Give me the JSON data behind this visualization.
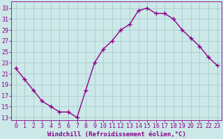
{
  "x": [
    0,
    1,
    2,
    3,
    4,
    5,
    6,
    7,
    8,
    9,
    10,
    11,
    12,
    13,
    14,
    15,
    16,
    17,
    18,
    19,
    20,
    21,
    22,
    23
  ],
  "y": [
    22,
    20,
    18,
    16,
    15,
    14,
    14,
    13,
    18,
    23,
    25.5,
    27,
    29,
    30,
    32.5,
    33,
    32,
    32,
    31,
    29,
    27.5,
    26,
    24,
    22.5
  ],
  "line_color": "#8b008b",
  "marker": "+",
  "marker_size": 4,
  "bg_color": "#cce8e8",
  "grid_color": "#aacccc",
  "xlabel": "Windchill (Refroidissement éolien,°C)",
  "ylabel_ticks": [
    13,
    15,
    17,
    19,
    21,
    23,
    25,
    27,
    29,
    31,
    33
  ],
  "ylim": [
    12.5,
    34.2
  ],
  "xlim": [
    -0.5,
    23.5
  ],
  "xticks": [
    0,
    1,
    2,
    3,
    4,
    5,
    6,
    7,
    8,
    9,
    10,
    11,
    12,
    13,
    14,
    15,
    16,
    17,
    18,
    19,
    20,
    21,
    22,
    23
  ],
  "title_color": "#8b008b",
  "label_fontsize": 6.5,
  "tick_fontsize": 6
}
